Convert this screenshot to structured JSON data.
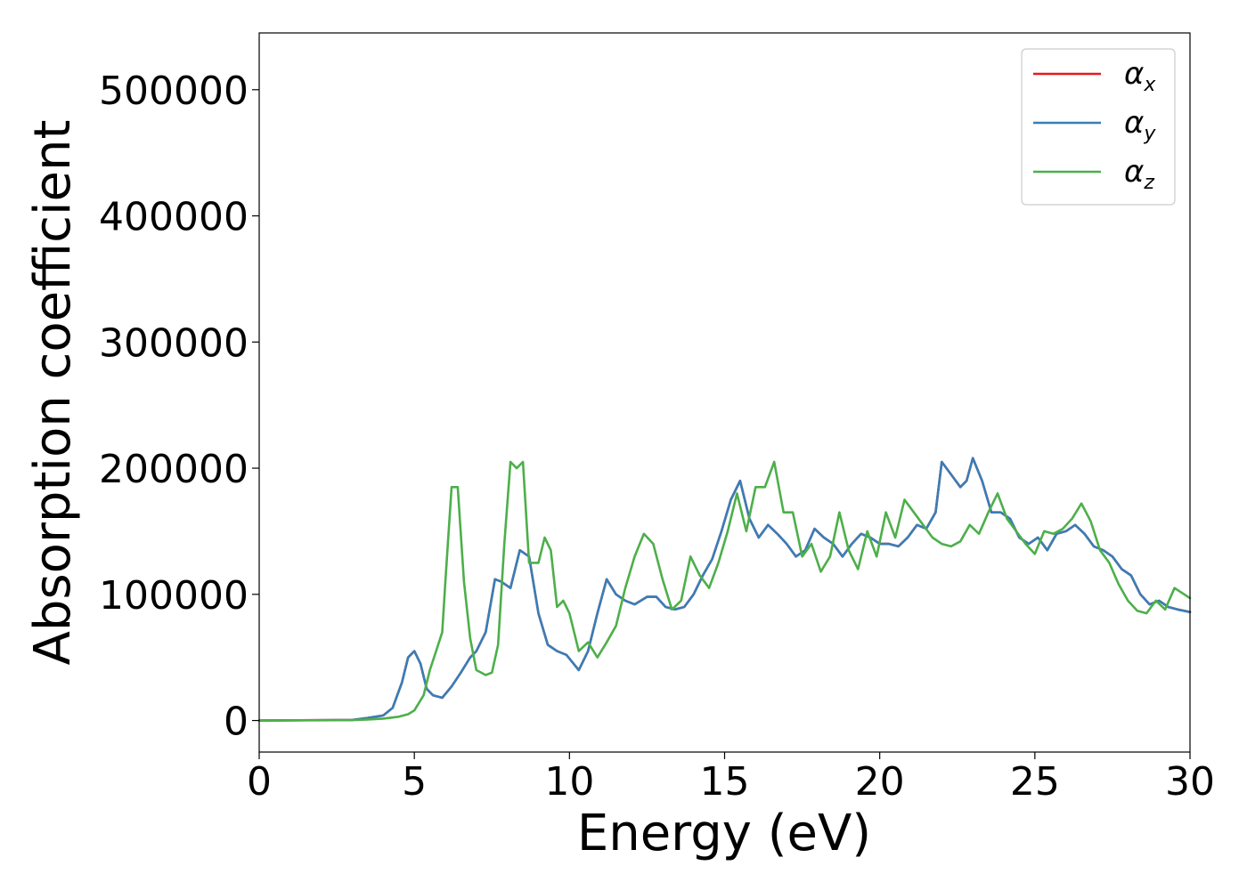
{
  "chart_data": {
    "type": "line",
    "xlabel": "Energy (eV)",
    "ylabel": "Absorption coefficient",
    "xlim": [
      0,
      30
    ],
    "ylim": [
      -25000,
      545000
    ],
    "x_ticks": [
      0,
      5,
      10,
      15,
      20,
      25,
      30
    ],
    "y_ticks": [
      0,
      100000,
      200000,
      300000,
      400000,
      500000
    ],
    "x_tick_labels": [
      "0",
      "5",
      "10",
      "15",
      "20",
      "25",
      "30"
    ],
    "y_tick_labels": [
      "0",
      "100000",
      "200000",
      "300000",
      "400000",
      "500000"
    ],
    "grid": false,
    "legend_position": "top-right",
    "series": [
      {
        "name": "α",
        "subscript": "x",
        "color": "#e41a1c",
        "x": [
          0,
          3,
          3.5,
          4,
          4.3,
          4.6,
          4.8,
          5.0,
          5.2,
          5.4,
          5.6,
          5.9,
          6.2,
          6.5,
          6.8,
          7.0,
          7.3,
          7.6,
          7.8,
          8.1,
          8.4,
          8.7,
          9.0,
          9.3,
          9.6,
          9.9,
          10.3,
          10.6,
          10.9,
          11.2,
          11.5,
          11.8,
          12.1,
          12.5,
          12.8,
          13.1,
          13.4,
          13.7,
          14.0,
          14.3,
          14.6,
          14.9,
          15.2,
          15.5,
          15.8,
          16.1,
          16.4,
          16.7,
          17.0,
          17.3,
          17.6,
          17.9,
          18.2,
          18.5,
          18.8,
          19.1,
          19.4,
          19.7,
          20.0,
          20.3,
          20.6,
          20.9,
          21.2,
          21.5,
          21.8,
          22.0,
          22.3,
          22.6,
          22.8,
          23.0,
          23.3,
          23.6,
          23.9,
          24.2,
          24.5,
          24.8,
          25.1,
          25.4,
          25.7,
          26.0,
          26.3,
          26.6,
          26.9,
          27.2,
          27.5,
          27.8,
          28.1,
          28.4,
          28.7,
          29.0,
          29.3,
          29.6,
          30.0
        ],
        "y": [
          0,
          500,
          2000,
          4000,
          10000,
          30000,
          50000,
          55000,
          45000,
          25000,
          20000,
          18000,
          27000,
          38000,
          50000,
          55000,
          70000,
          112000,
          110000,
          105000,
          135000,
          130000,
          85000,
          60000,
          55000,
          52000,
          40000,
          55000,
          85000,
          112000,
          100000,
          95000,
          92000,
          98000,
          98000,
          90000,
          88000,
          90000,
          100000,
          115000,
          128000,
          150000,
          175000,
          190000,
          160000,
          145000,
          155000,
          148000,
          140000,
          130000,
          135000,
          152000,
          145000,
          140000,
          130000,
          140000,
          148000,
          145000,
          140000,
          140000,
          138000,
          145000,
          155000,
          152000,
          165000,
          205000,
          195000,
          185000,
          190000,
          208000,
          190000,
          165000,
          165000,
          160000,
          145000,
          140000,
          145000,
          135000,
          148000,
          150000,
          155000,
          148000,
          138000,
          135000,
          130000,
          120000,
          115000,
          100000,
          92000,
          95000,
          90000,
          88000,
          86000
        ]
      },
      {
        "name": "α",
        "subscript": "y",
        "color": "#377eb8",
        "x": [
          0,
          3,
          3.5,
          4,
          4.3,
          4.6,
          4.8,
          5.0,
          5.2,
          5.4,
          5.6,
          5.9,
          6.2,
          6.5,
          6.8,
          7.0,
          7.3,
          7.6,
          7.8,
          8.1,
          8.4,
          8.7,
          9.0,
          9.3,
          9.6,
          9.9,
          10.3,
          10.6,
          10.9,
          11.2,
          11.5,
          11.8,
          12.1,
          12.5,
          12.8,
          13.1,
          13.4,
          13.7,
          14.0,
          14.3,
          14.6,
          14.9,
          15.2,
          15.5,
          15.8,
          16.1,
          16.4,
          16.7,
          17.0,
          17.3,
          17.6,
          17.9,
          18.2,
          18.5,
          18.8,
          19.1,
          19.4,
          19.7,
          20.0,
          20.3,
          20.6,
          20.9,
          21.2,
          21.5,
          21.8,
          22.0,
          22.3,
          22.6,
          22.8,
          23.0,
          23.3,
          23.6,
          23.9,
          24.2,
          24.5,
          24.8,
          25.1,
          25.4,
          25.7,
          26.0,
          26.3,
          26.6,
          26.9,
          27.2,
          27.5,
          27.8,
          28.1,
          28.4,
          28.7,
          29.0,
          29.3,
          29.6,
          30.0
        ],
        "y": [
          0,
          500,
          2000,
          4000,
          10000,
          30000,
          50000,
          55000,
          45000,
          25000,
          20000,
          18000,
          27000,
          38000,
          50000,
          55000,
          70000,
          112000,
          110000,
          105000,
          135000,
          130000,
          85000,
          60000,
          55000,
          52000,
          40000,
          55000,
          85000,
          112000,
          100000,
          95000,
          92000,
          98000,
          98000,
          90000,
          88000,
          90000,
          100000,
          115000,
          128000,
          150000,
          175000,
          190000,
          160000,
          145000,
          155000,
          148000,
          140000,
          130000,
          135000,
          152000,
          145000,
          140000,
          130000,
          140000,
          148000,
          145000,
          140000,
          140000,
          138000,
          145000,
          155000,
          152000,
          165000,
          205000,
          195000,
          185000,
          190000,
          208000,
          190000,
          165000,
          165000,
          160000,
          145000,
          140000,
          145000,
          135000,
          148000,
          150000,
          155000,
          148000,
          138000,
          135000,
          130000,
          120000,
          115000,
          100000,
          92000,
          95000,
          90000,
          88000,
          86000
        ]
      },
      {
        "name": "α",
        "subscript": "z",
        "color": "#4daf4a",
        "x": [
          0,
          3,
          3.5,
          4,
          4.5,
          4.8,
          5.0,
          5.3,
          5.5,
          5.7,
          5.9,
          6.0,
          6.2,
          6.4,
          6.6,
          6.8,
          7.0,
          7.3,
          7.5,
          7.7,
          7.9,
          8.1,
          8.3,
          8.5,
          8.7,
          9.0,
          9.2,
          9.4,
          9.6,
          9.8,
          10.0,
          10.3,
          10.6,
          10.9,
          11.2,
          11.5,
          11.8,
          12.1,
          12.4,
          12.7,
          13.0,
          13.3,
          13.6,
          13.9,
          14.2,
          14.5,
          14.8,
          15.1,
          15.4,
          15.7,
          16.0,
          16.3,
          16.6,
          16.9,
          17.2,
          17.5,
          17.8,
          18.1,
          18.4,
          18.7,
          19.0,
          19.3,
          19.6,
          19.9,
          20.2,
          20.5,
          20.8,
          21.1,
          21.4,
          21.7,
          22.0,
          22.3,
          22.6,
          22.9,
          23.2,
          23.5,
          23.8,
          24.1,
          24.4,
          24.7,
          25.0,
          25.3,
          25.6,
          25.9,
          26.2,
          26.5,
          26.8,
          27.1,
          27.4,
          27.7,
          28.0,
          28.3,
          28.6,
          28.9,
          29.2,
          29.5,
          30.0
        ],
        "y": [
          0,
          300,
          800,
          1500,
          3000,
          5000,
          8000,
          20000,
          40000,
          55000,
          70000,
          110000,
          185000,
          185000,
          110000,
          65000,
          40000,
          36000,
          38000,
          60000,
          140000,
          205000,
          200000,
          205000,
          125000,
          125000,
          145000,
          135000,
          90000,
          95000,
          85000,
          55000,
          62000,
          50000,
          62000,
          75000,
          105000,
          130000,
          148000,
          140000,
          112000,
          88000,
          95000,
          130000,
          115000,
          105000,
          125000,
          150000,
          180000,
          150000,
          185000,
          185000,
          205000,
          165000,
          165000,
          130000,
          140000,
          118000,
          130000,
          165000,
          135000,
          120000,
          150000,
          130000,
          165000,
          145000,
          175000,
          165000,
          155000,
          145000,
          140000,
          138000,
          142000,
          155000,
          148000,
          165000,
          180000,
          160000,
          150000,
          140000,
          132000,
          150000,
          148000,
          152000,
          160000,
          172000,
          158000,
          135000,
          125000,
          108000,
          95000,
          87000,
          85000,
          95000,
          88000,
          105000,
          97000
        ]
      }
    ]
  }
}
